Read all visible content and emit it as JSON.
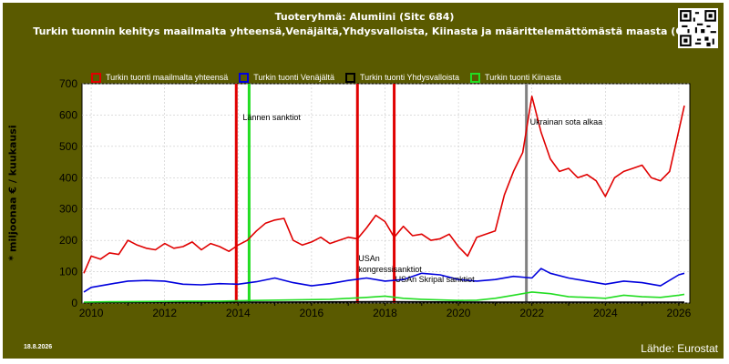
{
  "header": {
    "title": "Tuoteryhmä: Alumiini (Sitc 684)",
    "subtitle": "Turkin tuonnin kehitys maailmalta yhteensä,Venäjältä,Yhdysvalloista, Kiinasta ja määrittelemättömästä maasta (QZ)"
  },
  "footer": {
    "date": "18.8.2026",
    "source": "Lähde: Eurostat"
  },
  "colors": {
    "panel": "#5a5a00",
    "plot_bg": "#ffffff",
    "world": "#e00000",
    "russia": "#0000dd",
    "usa": "#000000",
    "china": "#22dd22",
    "event_red": "#e00000",
    "event_green": "#22dd22",
    "event_gray": "#808080"
  },
  "chart_data": {
    "type": "line",
    "ylabel": "* miljoonaa € / kuukausi",
    "ylim": [
      0,
      700
    ],
    "yticks": [
      0,
      100,
      200,
      300,
      400,
      500,
      600,
      700
    ],
    "xlim": [
      2009.75,
      2026.3
    ],
    "xticks": [
      2010,
      2012,
      2014,
      2016,
      2018,
      2020,
      2022,
      2024,
      2026
    ],
    "grid": true,
    "legend_position": "top",
    "series": [
      {
        "name": "Turkin tuonti maailmalta yhteensä",
        "color": "#e00000",
        "x": [
          2009.8,
          2010.0,
          2010.25,
          2010.5,
          2010.75,
          2011.0,
          2011.25,
          2011.5,
          2011.75,
          2012.0,
          2012.25,
          2012.5,
          2012.75,
          2013.0,
          2013.25,
          2013.5,
          2013.75,
          2014.0,
          2014.25,
          2014.5,
          2014.75,
          2015.0,
          2015.25,
          2015.5,
          2015.75,
          2016.0,
          2016.25,
          2016.5,
          2016.75,
          2017.0,
          2017.25,
          2017.5,
          2017.75,
          2018.0,
          2018.25,
          2018.5,
          2018.75,
          2019.0,
          2019.25,
          2019.5,
          2019.75,
          2020.0,
          2020.25,
          2020.5,
          2020.75,
          2021.0,
          2021.25,
          2021.5,
          2021.75,
          2022.0,
          2022.25,
          2022.5,
          2022.75,
          2023.0,
          2023.25,
          2023.5,
          2023.75,
          2024.0,
          2024.25,
          2024.5,
          2024.75,
          2025.0,
          2025.25,
          2025.5,
          2025.75,
          2026.0,
          2026.15
        ],
        "values": [
          95,
          150,
          140,
          160,
          155,
          200,
          185,
          175,
          170,
          190,
          175,
          180,
          195,
          170,
          190,
          180,
          165,
          185,
          200,
          230,
          255,
          265,
          270,
          200,
          185,
          195,
          210,
          190,
          200,
          210,
          205,
          240,
          280,
          260,
          210,
          245,
          215,
          220,
          200,
          205,
          220,
          180,
          150,
          210,
          220,
          230,
          345,
          420,
          480,
          660,
          545,
          460,
          420,
          430,
          400,
          410,
          390,
          340,
          400,
          420,
          430,
          440,
          400,
          390,
          420,
          550,
          630
        ]
      },
      {
        "name": "Turkin tuonti Venäjältä",
        "color": "#0000dd",
        "x": [
          2009.8,
          2010.0,
          2010.5,
          2011.0,
          2011.5,
          2012.0,
          2012.5,
          2013.0,
          2013.5,
          2014.0,
          2014.5,
          2015.0,
          2015.5,
          2016.0,
          2016.5,
          2017.0,
          2017.5,
          2018.0,
          2018.5,
          2019.0,
          2019.5,
          2020.0,
          2020.5,
          2021.0,
          2021.5,
          2022.0,
          2022.25,
          2022.5,
          2023.0,
          2023.5,
          2024.0,
          2024.5,
          2025.0,
          2025.5,
          2026.0,
          2026.15
        ],
        "values": [
          35,
          50,
          60,
          70,
          72,
          70,
          60,
          58,
          62,
          60,
          68,
          80,
          65,
          55,
          62,
          72,
          80,
          70,
          75,
          95,
          90,
          75,
          70,
          75,
          85,
          80,
          110,
          95,
          80,
          70,
          60,
          70,
          65,
          55,
          90,
          95
        ]
      },
      {
        "name": "Turkin tuonti Yhdysvalloista",
        "color": "#000000",
        "x": [
          2009.8,
          2012.0,
          2015.0,
          2018.0,
          2021.0,
          2024.0,
          2026.15
        ],
        "values": [
          2,
          3,
          3,
          4,
          3,
          3,
          3
        ]
      },
      {
        "name": "Turkin tuonti Kiinasta",
        "color": "#22dd22",
        "x": [
          2009.8,
          2010.5,
          2011.5,
          2012.5,
          2013.5,
          2014.5,
          2015.5,
          2016.5,
          2017.5,
          2018.0,
          2018.5,
          2019.0,
          2019.5,
          2020.0,
          2020.5,
          2021.0,
          2021.5,
          2022.0,
          2022.5,
          2023.0,
          2023.5,
          2024.0,
          2024.5,
          2025.0,
          2025.5,
          2026.0,
          2026.15
        ],
        "values": [
          3,
          4,
          5,
          6,
          6,
          8,
          10,
          12,
          18,
          22,
          15,
          12,
          10,
          8,
          9,
          15,
          25,
          35,
          30,
          20,
          18,
          15,
          25,
          20,
          18,
          25,
          28
        ]
      }
    ],
    "events": [
      {
        "x": 2013.95,
        "color": "#e00000",
        "label": ""
      },
      {
        "x": 2014.3,
        "color": "#22dd22",
        "label": "Lännen sanktiot"
      },
      {
        "x": 2017.25,
        "color": "#e00000",
        "label": "USAn kongressisanktiot"
      },
      {
        "x": 2018.25,
        "color": "#e00000",
        "label": "USAn Skripal sanktiot"
      },
      {
        "x": 2021.85,
        "color": "#808080",
        "label": "Ukrainan sota alkaa"
      }
    ]
  }
}
